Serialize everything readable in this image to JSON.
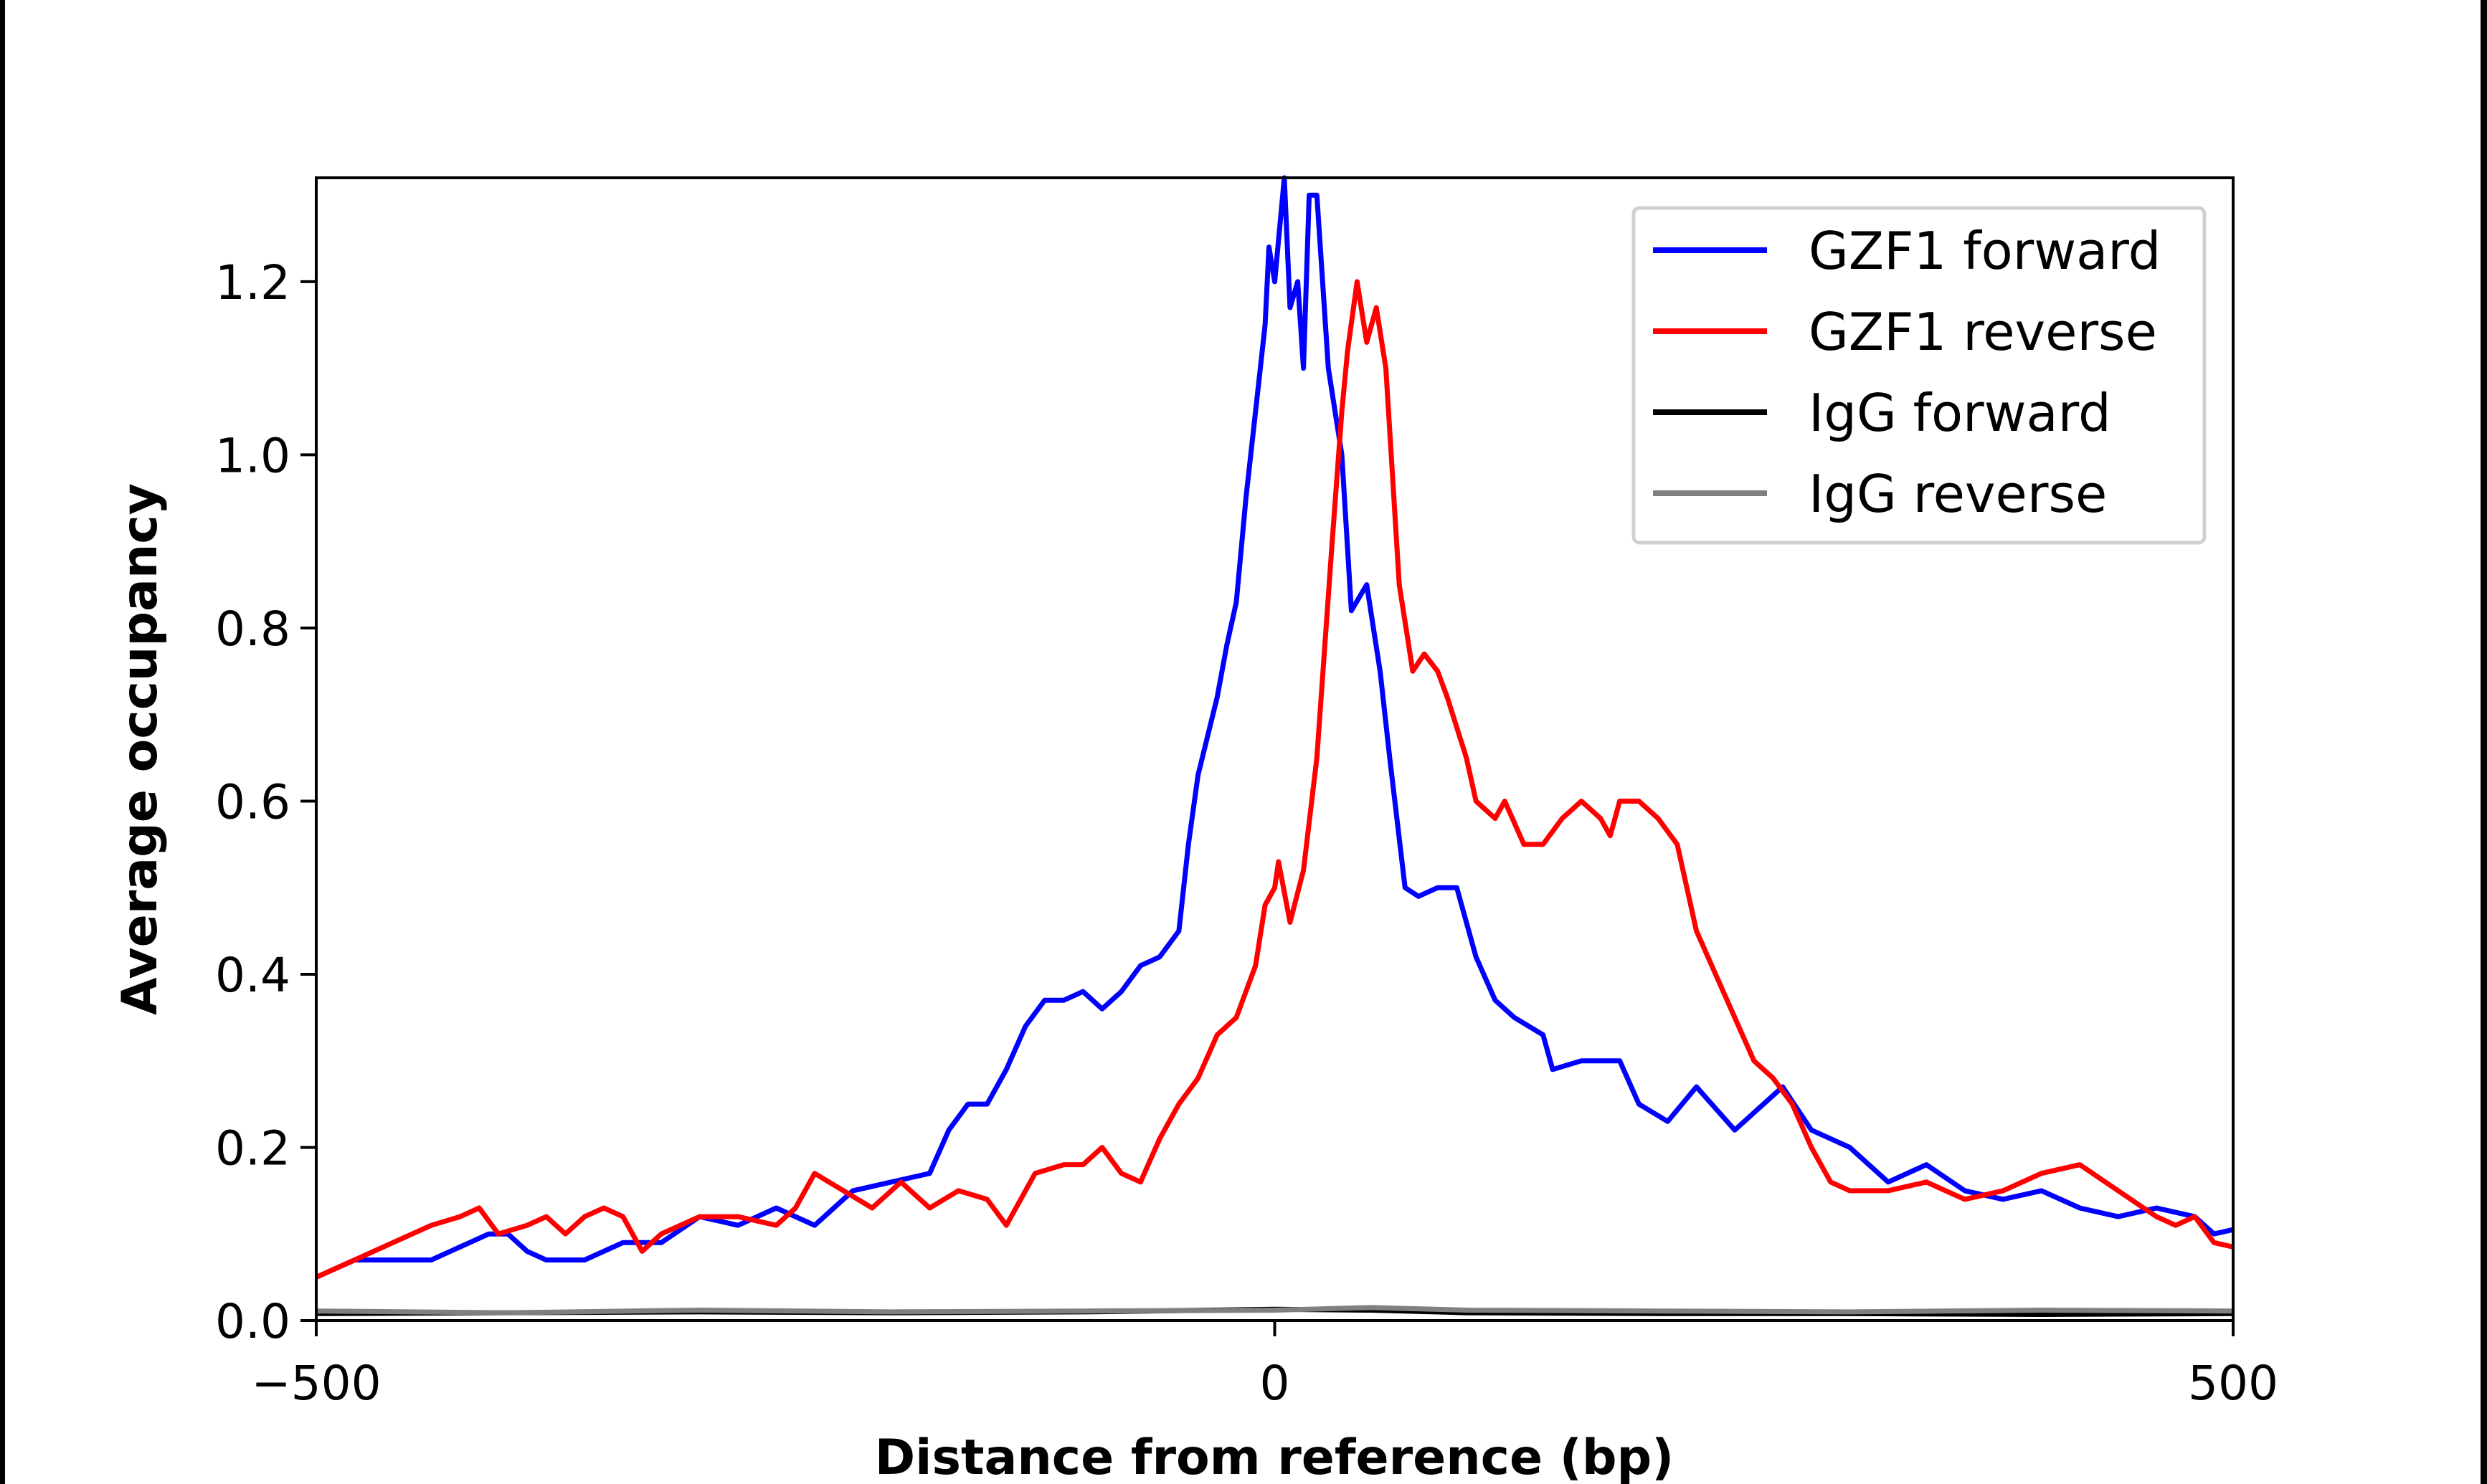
{
  "chart_data": {
    "type": "line",
    "xlabel": "Distance from reference (bp)",
    "ylabel": "Average occupancy",
    "xlim": [
      -500,
      500
    ],
    "ylim": [
      0,
      1.32
    ],
    "xticks": [
      -500,
      0,
      500
    ],
    "xtick_labels": [
      "−500",
      "0",
      "500"
    ],
    "yticks": [
      0.0,
      0.2,
      0.4,
      0.6,
      0.8,
      1.0,
      1.2
    ],
    "ytick_labels": [
      "0.0",
      "0.2",
      "0.4",
      "0.6",
      "0.8",
      "1.0",
      "1.2"
    ],
    "grid": false,
    "legend_position": "top-right",
    "series": [
      {
        "name": "GZF1 forward",
        "color": "#0000ff",
        "x": [
          -500,
          -480,
          -460,
          -440,
          -420,
          -410,
          -400,
          -390,
          -380,
          -360,
          -340,
          -320,
          -300,
          -280,
          -260,
          -240,
          -220,
          -200,
          -180,
          -170,
          -160,
          -150,
          -140,
          -130,
          -120,
          -110,
          -100,
          -90,
          -80,
          -70,
          -60,
          -50,
          -45,
          -40,
          -30,
          -25,
          -20,
          -15,
          -10,
          -5,
          -3,
          0,
          5,
          8,
          12,
          15,
          18,
          22,
          28,
          35,
          40,
          48,
          55,
          60,
          68,
          75,
          85,
          95,
          105,
          115,
          125,
          140,
          145,
          160,
          180,
          190,
          205,
          220,
          240,
          265,
          280,
          300,
          320,
          340,
          360,
          380,
          400,
          420,
          440,
          460,
          480,
          490,
          500
        ],
        "y": [
          0.05,
          0.07,
          0.07,
          0.07,
          0.09,
          0.1,
          0.1,
          0.08,
          0.07,
          0.07,
          0.09,
          0.09,
          0.12,
          0.11,
          0.13,
          0.11,
          0.15,
          0.16,
          0.17,
          0.22,
          0.25,
          0.25,
          0.29,
          0.34,
          0.37,
          0.37,
          0.38,
          0.36,
          0.38,
          0.41,
          0.42,
          0.45,
          0.55,
          0.63,
          0.72,
          0.78,
          0.83,
          0.95,
          1.05,
          1.15,
          1.24,
          1.2,
          1.32,
          1.17,
          1.2,
          1.1,
          1.3,
          1.3,
          1.1,
          1.0,
          0.82,
          0.85,
          0.75,
          0.65,
          0.5,
          0.49,
          0.5,
          0.5,
          0.42,
          0.37,
          0.35,
          0.33,
          0.29,
          0.3,
          0.3,
          0.25,
          0.23,
          0.27,
          0.22,
          0.27,
          0.22,
          0.2,
          0.16,
          0.18,
          0.15,
          0.14,
          0.15,
          0.13,
          0.12,
          0.13,
          0.12,
          0.1,
          0.105
        ]
      },
      {
        "name": "GZF1 reverse",
        "color": "#ff0000",
        "x": [
          -500,
          -480,
          -460,
          -440,
          -425,
          -415,
          -405,
          -390,
          -380,
          -370,
          -360,
          -350,
          -340,
          -330,
          -320,
          -300,
          -280,
          -260,
          -250,
          -240,
          -225,
          -210,
          -195,
          -180,
          -165,
          -150,
          -140,
          -125,
          -110,
          -100,
          -90,
          -80,
          -70,
          -60,
          -50,
          -40,
          -30,
          -20,
          -10,
          -5,
          0,
          2,
          8,
          15,
          22,
          30,
          35,
          38,
          43,
          48,
          53,
          58,
          65,
          72,
          78,
          85,
          90,
          100,
          105,
          115,
          120,
          130,
          140,
          150,
          160,
          170,
          175,
          180,
          190,
          200,
          210,
          220,
          230,
          240,
          250,
          260,
          270,
          280,
          290,
          300,
          320,
          340,
          350,
          360,
          380,
          400,
          420,
          440,
          460,
          470,
          480,
          490,
          500
        ],
        "y": [
          0.05,
          0.07,
          0.09,
          0.11,
          0.12,
          0.13,
          0.1,
          0.11,
          0.12,
          0.1,
          0.12,
          0.13,
          0.12,
          0.08,
          0.1,
          0.12,
          0.12,
          0.11,
          0.13,
          0.17,
          0.15,
          0.13,
          0.16,
          0.13,
          0.15,
          0.14,
          0.11,
          0.17,
          0.18,
          0.18,
          0.2,
          0.17,
          0.16,
          0.21,
          0.25,
          0.28,
          0.33,
          0.35,
          0.41,
          0.48,
          0.5,
          0.53,
          0.46,
          0.52,
          0.65,
          0.9,
          1.05,
          1.12,
          1.2,
          1.13,
          1.17,
          1.1,
          0.85,
          0.75,
          0.77,
          0.75,
          0.72,
          0.65,
          0.6,
          0.58,
          0.6,
          0.55,
          0.55,
          0.58,
          0.6,
          0.58,
          0.56,
          0.6,
          0.6,
          0.58,
          0.55,
          0.45,
          0.4,
          0.35,
          0.3,
          0.28,
          0.25,
          0.2,
          0.16,
          0.15,
          0.15,
          0.16,
          0.15,
          0.14,
          0.15,
          0.17,
          0.18,
          0.15,
          0.12,
          0.11,
          0.12,
          0.09,
          0.085
        ]
      },
      {
        "name": "IgG forward",
        "color": "#000000",
        "x": [
          -500,
          -400,
          -300,
          -200,
          -100,
          0,
          50,
          100,
          200,
          300,
          400,
          500
        ],
        "y": [
          0.008,
          0.009,
          0.01,
          0.009,
          0.01,
          0.013,
          0.012,
          0.009,
          0.008,
          0.008,
          0.007,
          0.008
        ]
      },
      {
        "name": "IgG reverse",
        "color": "#808080",
        "x": [
          -500,
          -400,
          -300,
          -200,
          -100,
          0,
          50,
          100,
          200,
          300,
          400,
          500
        ],
        "y": [
          0.011,
          0.009,
          0.012,
          0.01,
          0.011,
          0.012,
          0.015,
          0.012,
          0.011,
          0.01,
          0.012,
          0.011
        ]
      }
    ]
  }
}
